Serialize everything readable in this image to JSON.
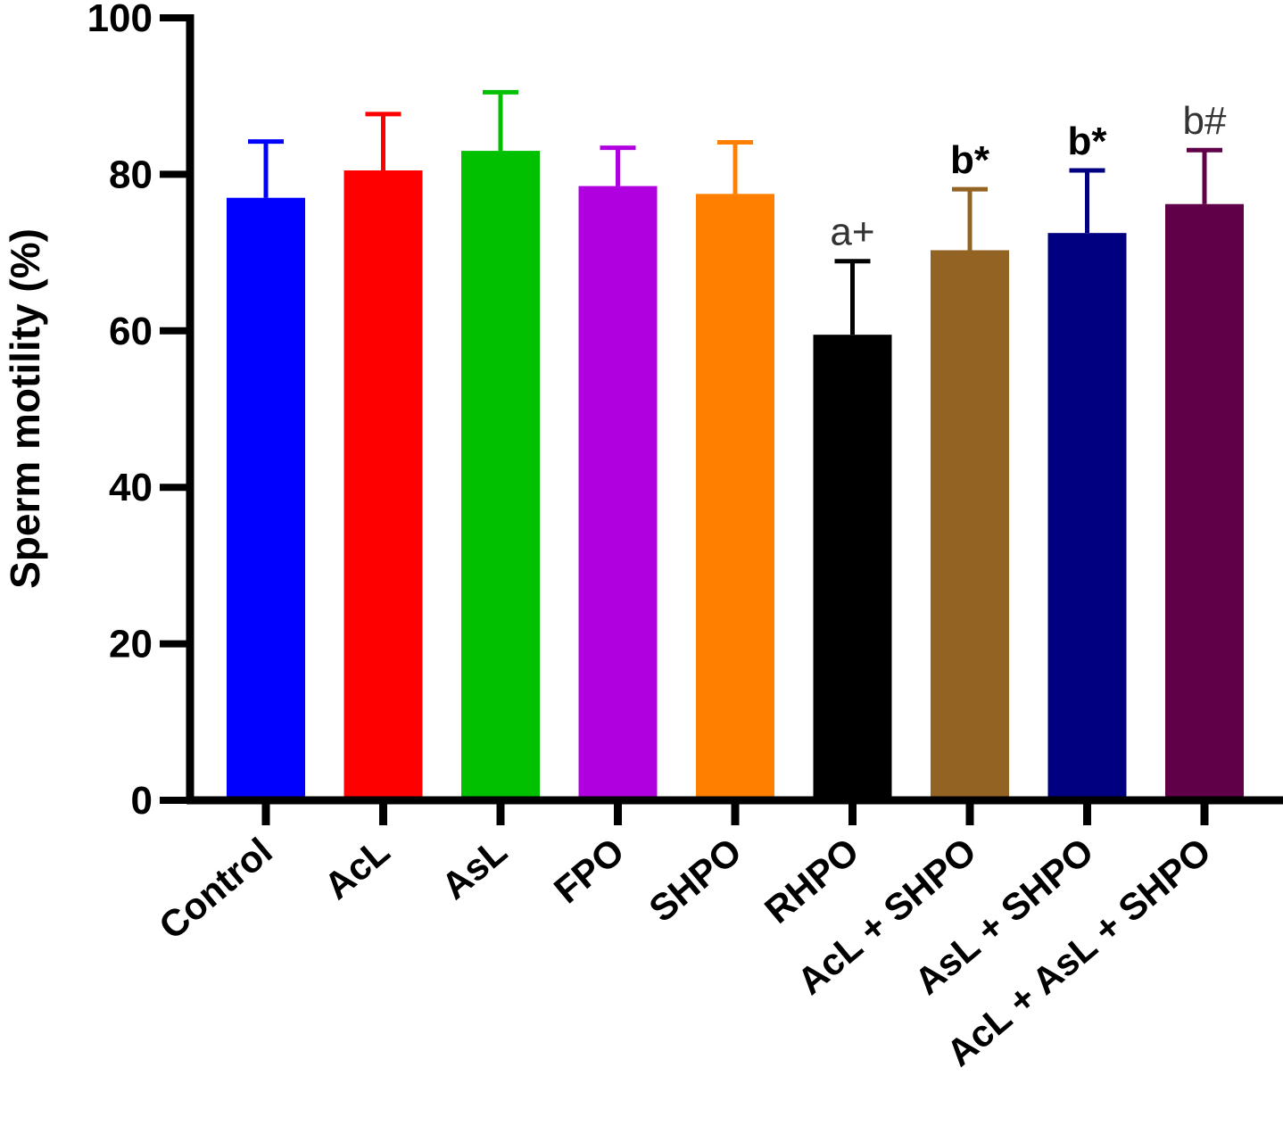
{
  "chart_data": {
    "type": "bar",
    "title": "",
    "xlabel": "",
    "ylabel": "Sperm motility (%)",
    "ylim": [
      0,
      100
    ],
    "yticks": [
      0,
      20,
      40,
      60,
      80,
      100
    ],
    "grid": false,
    "categories": [
      "Control",
      "AcL",
      "AsL",
      "FPO",
      "SHPO",
      "RHPO",
      "AcL + SHPO",
      "AsL + SHPO",
      "AcL + AsL + SHPO"
    ],
    "values": [
      77,
      80.5,
      83,
      78.5,
      77.5,
      59.5,
      70.3,
      72.5,
      76.2
    ],
    "errors": [
      7.2,
      7.2,
      7.5,
      4.9,
      6.6,
      9.4,
      7.8,
      8.0,
      6.9
    ],
    "colors": [
      "#0000ff",
      "#ff0000",
      "#00c000",
      "#b000e0",
      "#ff8000",
      "#000000",
      "#936324",
      "#000080",
      "#600048"
    ],
    "annotations": [
      "",
      "",
      "",
      "",
      "",
      "a+",
      "b*",
      "b*",
      "b#"
    ]
  }
}
